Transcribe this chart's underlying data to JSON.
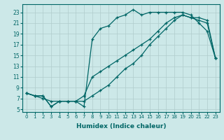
{
  "xlabel": "Humidex (Indice chaleur)",
  "background_color": "#cce8e8",
  "grid_color": "#b0cccc",
  "line_color": "#006666",
  "xlim": [
    -0.5,
    23.5
  ],
  "ylim": [
    4.5,
    24.5
  ],
  "yticks": [
    5,
    7,
    9,
    11,
    13,
    15,
    17,
    19,
    21,
    23
  ],
  "xticks": [
    0,
    1,
    2,
    3,
    4,
    5,
    6,
    7,
    8,
    9,
    10,
    11,
    12,
    13,
    14,
    15,
    16,
    17,
    18,
    19,
    20,
    21,
    22,
    23
  ],
  "line1_x": [
    0,
    1,
    2,
    3,
    4,
    5,
    6,
    7,
    8,
    9,
    10,
    11,
    12,
    13,
    14,
    15,
    16,
    17,
    18,
    19,
    20,
    21,
    22,
    23
  ],
  "line1_y": [
    8,
    7.5,
    7.5,
    5.5,
    6.5,
    6.5,
    6.5,
    5.5,
    18,
    20,
    20.5,
    22,
    22.5,
    23.5,
    22.5,
    23,
    23,
    23,
    23,
    23,
    22.5,
    21,
    19.5,
    14.5
  ],
  "line2_x": [
    0,
    1,
    2,
    3,
    4,
    5,
    6,
    7,
    8,
    9,
    10,
    11,
    12,
    13,
    14,
    15,
    16,
    17,
    18,
    19,
    20,
    21,
    22,
    23
  ],
  "line2_y": [
    8,
    7.5,
    7.5,
    5.5,
    6.5,
    6.5,
    6.5,
    6.5,
    7.5,
    8.5,
    9.5,
    11,
    12.5,
    13.5,
    15,
    17,
    18.5,
    20,
    21.5,
    22.5,
    22,
    22,
    21.5,
    14.5
  ],
  "line3_x": [
    0,
    1,
    2,
    3,
    4,
    5,
    6,
    7,
    8,
    9,
    10,
    11,
    12,
    13,
    14,
    15,
    16,
    17,
    18,
    19,
    20,
    21,
    22,
    23
  ],
  "line3_y": [
    8,
    7.5,
    7,
    6.5,
    6.5,
    6.5,
    6.5,
    7.5,
    11,
    12,
    13,
    14,
    15,
    16,
    17,
    18,
    19.5,
    21,
    22,
    22.5,
    22,
    21.5,
    21,
    14.5
  ]
}
